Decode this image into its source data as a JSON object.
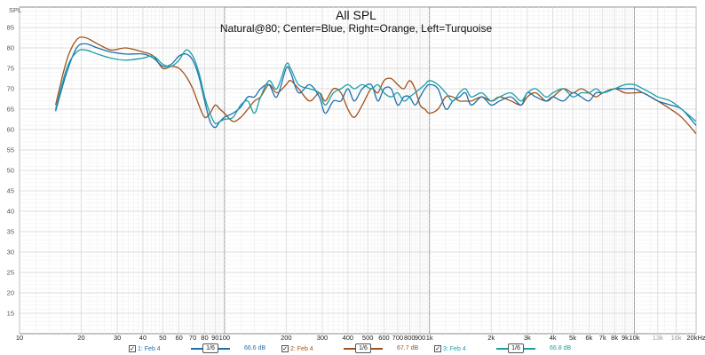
{
  "chart_data": {
    "type": "line",
    "title": "All SPL",
    "subtitle": "Natural@80; Center=Blue, Right=Orange, Left=Turquoise",
    "ylabel": "SPL",
    "xlabel_units": "Hz",
    "x_scale": "log",
    "xlim": [
      10,
      20000
    ],
    "ylim": [
      10,
      90
    ],
    "grid": true,
    "y_ticks": [
      15,
      20,
      25,
      30,
      35,
      40,
      45,
      50,
      55,
      60,
      65,
      70,
      75,
      80,
      85
    ],
    "x_ticks": [
      {
        "v": 10,
        "label": "10"
      },
      {
        "v": 20,
        "label": "20"
      },
      {
        "v": 30,
        "label": "30"
      },
      {
        "v": 40,
        "label": "40"
      },
      {
        "v": 50,
        "label": "50"
      },
      {
        "v": 60,
        "label": "60"
      },
      {
        "v": 70,
        "label": "70"
      },
      {
        "v": 80,
        "label": "80"
      },
      {
        "v": 90,
        "label": "90"
      },
      {
        "v": 100,
        "label": "100"
      },
      {
        "v": 200,
        "label": "200"
      },
      {
        "v": 300,
        "label": "300"
      },
      {
        "v": 400,
        "label": "400"
      },
      {
        "v": 500,
        "label": "500"
      },
      {
        "v": 600,
        "label": "600"
      },
      {
        "v": 700,
        "label": "700"
      },
      {
        "v": 800,
        "label": "800"
      },
      {
        "v": 900,
        "label": "900"
      },
      {
        "v": 1000,
        "label": "1k"
      },
      {
        "v": 2000,
        "label": "2k"
      },
      {
        "v": 3000,
        "label": "3k"
      },
      {
        "v": 4000,
        "label": "4k"
      },
      {
        "v": 5000,
        "label": "5k"
      },
      {
        "v": 6000,
        "label": "6k"
      },
      {
        "v": 7000,
        "label": "7k"
      },
      {
        "v": 8000,
        "label": "8k"
      },
      {
        "v": 9000,
        "label": "9k"
      },
      {
        "v": 10000,
        "label": "10k"
      },
      {
        "v": 13000,
        "label": "13k",
        "dim": true
      },
      {
        "v": 16000,
        "label": "16k",
        "dim": true
      },
      {
        "v": 20000,
        "label": "20kHz"
      }
    ],
    "series": [
      {
        "name": "1: Feb 4",
        "color": "#1f6fae",
        "level": "66.6 dB",
        "smoothing": "1/6",
        "points": [
          [
            15,
            64.5
          ],
          [
            17,
            74
          ],
          [
            19,
            80
          ],
          [
            21,
            81
          ],
          [
            24,
            80
          ],
          [
            28,
            79
          ],
          [
            33,
            78.5
          ],
          [
            40,
            78.5
          ],
          [
            45,
            77.5
          ],
          [
            50,
            75.5
          ],
          [
            55,
            76
          ],
          [
            60,
            78
          ],
          [
            65,
            78.5
          ],
          [
            70,
            77
          ],
          [
            75,
            73
          ],
          [
            80,
            67
          ],
          [
            85,
            62
          ],
          [
            90,
            60.5
          ],
          [
            95,
            62
          ],
          [
            100,
            63
          ],
          [
            110,
            64
          ],
          [
            120,
            65.5
          ],
          [
            130,
            68
          ],
          [
            140,
            68
          ],
          [
            150,
            70
          ],
          [
            165,
            71
          ],
          [
            180,
            68
          ],
          [
            200,
            75
          ],
          [
            210,
            74
          ],
          [
            230,
            69
          ],
          [
            260,
            71
          ],
          [
            290,
            68
          ],
          [
            310,
            64
          ],
          [
            340,
            67
          ],
          [
            370,
            67
          ],
          [
            400,
            70
          ],
          [
            430,
            67
          ],
          [
            470,
            70
          ],
          [
            520,
            71
          ],
          [
            560,
            67
          ],
          [
            600,
            70
          ],
          [
            650,
            70
          ],
          [
            700,
            66
          ],
          [
            750,
            68
          ],
          [
            800,
            68
          ],
          [
            850,
            66
          ],
          [
            900,
            68
          ],
          [
            950,
            70
          ],
          [
            1000,
            71
          ],
          [
            1100,
            70
          ],
          [
            1200,
            65
          ],
          [
            1300,
            67
          ],
          [
            1400,
            68
          ],
          [
            1500,
            69
          ],
          [
            1600,
            66
          ],
          [
            1800,
            68
          ],
          [
            2000,
            66
          ],
          [
            2200,
            67
          ],
          [
            2500,
            68
          ],
          [
            2800,
            66
          ],
          [
            3000,
            69
          ],
          [
            3300,
            68
          ],
          [
            3700,
            67
          ],
          [
            4000,
            68
          ],
          [
            4500,
            67
          ],
          [
            5000,
            69
          ],
          [
            5500,
            68
          ],
          [
            6000,
            67
          ],
          [
            6500,
            69
          ],
          [
            7000,
            69
          ],
          [
            8000,
            70
          ],
          [
            9000,
            70
          ],
          [
            10000,
            70
          ],
          [
            11000,
            69
          ],
          [
            12000,
            68
          ],
          [
            13000,
            67
          ],
          [
            15000,
            66
          ],
          [
            17000,
            65
          ],
          [
            20000,
            61
          ]
        ]
      },
      {
        "name": "2: Feb 4",
        "color": "#a0521a",
        "level": "67.7 dB",
        "smoothing": "1/6",
        "points": [
          [
            15,
            66
          ],
          [
            17,
            77
          ],
          [
            19,
            82
          ],
          [
            21,
            82.5
          ],
          [
            24,
            81
          ],
          [
            28,
            79.5
          ],
          [
            33,
            80
          ],
          [
            40,
            79
          ],
          [
            45,
            78
          ],
          [
            50,
            75
          ],
          [
            55,
            75.5
          ],
          [
            60,
            75
          ],
          [
            65,
            73
          ],
          [
            70,
            70
          ],
          [
            75,
            66
          ],
          [
            80,
            63
          ],
          [
            85,
            64
          ],
          [
            90,
            66
          ],
          [
            95,
            65
          ],
          [
            100,
            64
          ],
          [
            110,
            62
          ],
          [
            120,
            63
          ],
          [
            130,
            65
          ],
          [
            140,
            67
          ],
          [
            150,
            68
          ],
          [
            165,
            71
          ],
          [
            180,
            69
          ],
          [
            200,
            71
          ],
          [
            210,
            72
          ],
          [
            230,
            70
          ],
          [
            260,
            67
          ],
          [
            290,
            69
          ],
          [
            310,
            67
          ],
          [
            340,
            70
          ],
          [
            370,
            69
          ],
          [
            400,
            65
          ],
          [
            430,
            63
          ],
          [
            470,
            66
          ],
          [
            520,
            70
          ],
          [
            560,
            69
          ],
          [
            600,
            72
          ],
          [
            650,
            72.5
          ],
          [
            700,
            71
          ],
          [
            750,
            70
          ],
          [
            800,
            72
          ],
          [
            850,
            70
          ],
          [
            900,
            66
          ],
          [
            950,
            65
          ],
          [
            1000,
            64
          ],
          [
            1100,
            65
          ],
          [
            1200,
            68
          ],
          [
            1300,
            68
          ],
          [
            1400,
            67
          ],
          [
            1500,
            67
          ],
          [
            1600,
            67
          ],
          [
            1800,
            68
          ],
          [
            2000,
            67
          ],
          [
            2200,
            68
          ],
          [
            2500,
            67
          ],
          [
            2800,
            66
          ],
          [
            3000,
            68
          ],
          [
            3300,
            69
          ],
          [
            3700,
            67
          ],
          [
            4000,
            68
          ],
          [
            4500,
            70
          ],
          [
            5000,
            69
          ],
          [
            5500,
            70
          ],
          [
            6000,
            69
          ],
          [
            6500,
            68
          ],
          [
            7000,
            69
          ],
          [
            8000,
            70
          ],
          [
            9000,
            69
          ],
          [
            10000,
            69
          ],
          [
            11000,
            69
          ],
          [
            12000,
            68
          ],
          [
            13000,
            67
          ],
          [
            15000,
            65
          ],
          [
            17000,
            63
          ],
          [
            20000,
            59
          ]
        ]
      },
      {
        "name": "3: Feb 4",
        "color": "#1aa0a6",
        "level": "66.8 dB",
        "smoothing": "1/6",
        "points": [
          [
            15,
            65
          ],
          [
            17,
            75
          ],
          [
            19,
            79
          ],
          [
            21,
            79.5
          ],
          [
            24,
            78.5
          ],
          [
            28,
            77.5
          ],
          [
            33,
            77
          ],
          [
            40,
            77.5
          ],
          [
            45,
            78
          ],
          [
            50,
            76
          ],
          [
            55,
            75.5
          ],
          [
            60,
            77
          ],
          [
            65,
            79.5
          ],
          [
            70,
            78
          ],
          [
            75,
            74
          ],
          [
            80,
            68
          ],
          [
            85,
            64
          ],
          [
            90,
            61.5
          ],
          [
            95,
            62
          ],
          [
            100,
            62.5
          ],
          [
            110,
            63
          ],
          [
            120,
            66
          ],
          [
            130,
            67
          ],
          [
            140,
            64
          ],
          [
            150,
            68
          ],
          [
            165,
            72
          ],
          [
            180,
            70
          ],
          [
            200,
            76
          ],
          [
            210,
            75
          ],
          [
            230,
            71
          ],
          [
            260,
            70
          ],
          [
            290,
            69
          ],
          [
            310,
            66
          ],
          [
            340,
            69
          ],
          [
            370,
            70
          ],
          [
            400,
            71
          ],
          [
            430,
            70
          ],
          [
            470,
            71
          ],
          [
            520,
            70
          ],
          [
            560,
            71
          ],
          [
            600,
            69
          ],
          [
            650,
            68
          ],
          [
            700,
            69
          ],
          [
            750,
            67
          ],
          [
            800,
            68
          ],
          [
            850,
            69
          ],
          [
            900,
            70
          ],
          [
            950,
            71
          ],
          [
            1000,
            72
          ],
          [
            1100,
            71
          ],
          [
            1200,
            69
          ],
          [
            1300,
            67
          ],
          [
            1400,
            69
          ],
          [
            1500,
            70
          ],
          [
            1600,
            68
          ],
          [
            1800,
            69
          ],
          [
            2000,
            67
          ],
          [
            2200,
            68
          ],
          [
            2500,
            69
          ],
          [
            2800,
            67
          ],
          [
            3000,
            69
          ],
          [
            3300,
            70
          ],
          [
            3700,
            68
          ],
          [
            4000,
            69
          ],
          [
            4500,
            70
          ],
          [
            5000,
            68
          ],
          [
            5500,
            69
          ],
          [
            6000,
            69
          ],
          [
            6500,
            70
          ],
          [
            7000,
            69
          ],
          [
            8000,
            70
          ],
          [
            9000,
            71
          ],
          [
            10000,
            71
          ],
          [
            11000,
            70
          ],
          [
            12000,
            69
          ],
          [
            13000,
            68
          ],
          [
            15000,
            67
          ],
          [
            17000,
            65
          ],
          [
            20000,
            62
          ]
        ]
      }
    ]
  }
}
